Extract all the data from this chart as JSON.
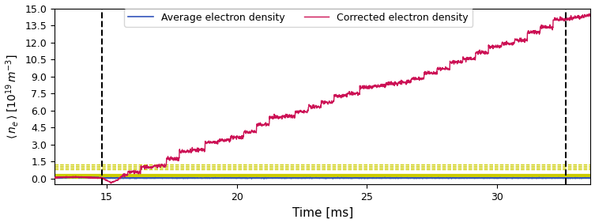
{
  "xlabel": "Time [ms]",
  "ylabel": "< n_e > [10^19 m^-3]",
  "xlim": [
    13.0,
    33.6
  ],
  "ylim": [
    -0.5,
    15.0
  ],
  "yticks": [
    0.0,
    1.5,
    3.0,
    4.5,
    6.0,
    7.5,
    9.0,
    10.5,
    12.0,
    13.5,
    15.0
  ],
  "xticks": [
    15,
    20,
    25,
    30
  ],
  "vline1_x": 14.82,
  "vline2_x": 32.65,
  "avg_density_color": "#3355BB",
  "corrected_density_color": "#CC1155",
  "yellow_solid_levels": [
    0.04,
    0.12,
    0.19,
    0.27,
    0.34,
    0.41
  ],
  "yellow_dashed_levels": [
    0.82,
    0.97,
    1.1,
    1.24
  ],
  "yellow_color": "#CCCC00",
  "figsize": [
    7.53,
    2.82
  ],
  "dpi": 100
}
